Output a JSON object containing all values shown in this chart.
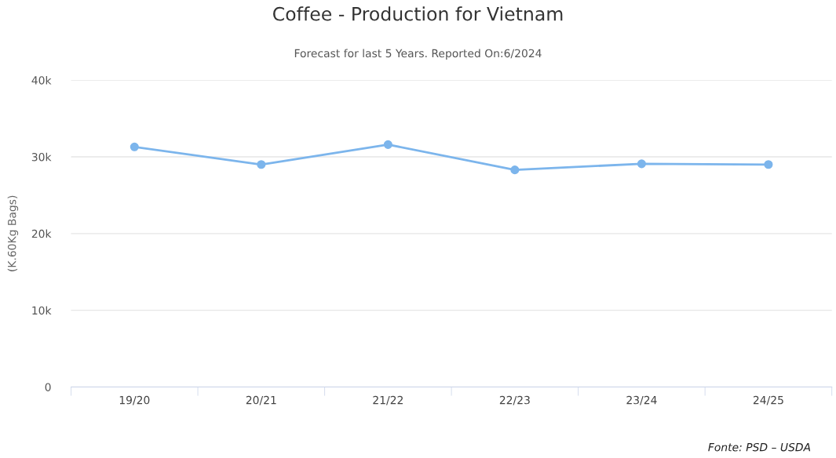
{
  "chart_data": {
    "type": "line",
    "title": "Coffee - Production for Vietnam",
    "subtitle": "Forecast for last 5 Years. Reported On:6/2024",
    "ylabel": "(K.60Kg Bags)",
    "categories": [
      "19/20",
      "20/21",
      "21/22",
      "22/23",
      "23/24",
      "24/25"
    ],
    "series": [
      {
        "color": "#7cb5ec",
        "values": [
          31300,
          29000,
          31600,
          28300,
          29100,
          29000
        ]
      }
    ],
    "ylim": [
      0,
      40000
    ],
    "yticks": [
      {
        "value": 0,
        "label": "0"
      },
      {
        "value": 10000,
        "label": "10k"
      },
      {
        "value": 20000,
        "label": "20k"
      },
      {
        "value": 30000,
        "label": "30k"
      },
      {
        "value": 40000,
        "label": "40k"
      }
    ],
    "grid": "y",
    "marker": "circle",
    "line_style": "solid",
    "annotations": [
      "Fonte: PSD – USDA"
    ]
  }
}
